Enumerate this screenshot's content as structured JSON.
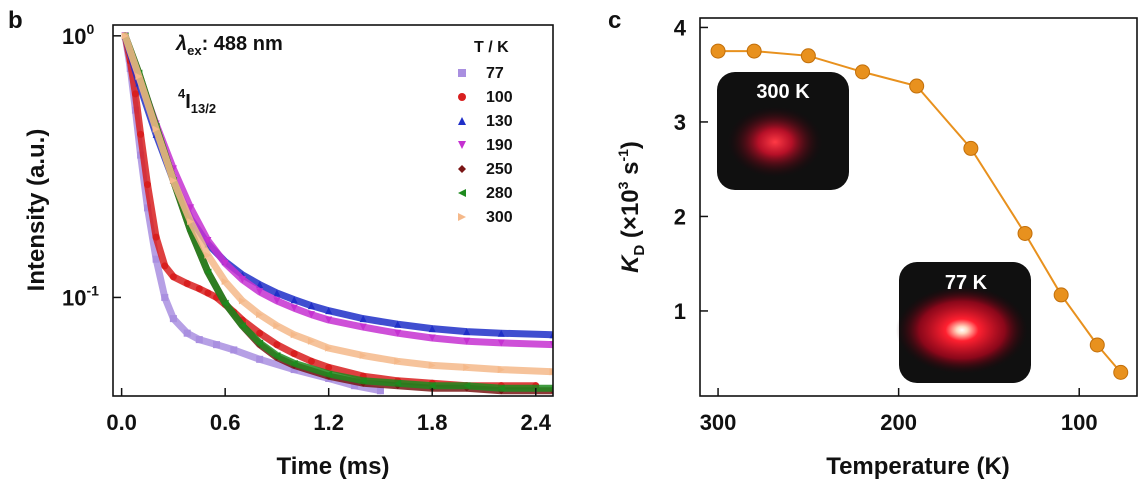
{
  "chart_data": [
    {
      "panel": "b",
      "type": "line",
      "xlabel": "Time (ms)",
      "ylabel": "Intensity (a.u.)",
      "xlim": [
        -0.05,
        2.5
      ],
      "ylim": [
        0.042,
        1.1
      ],
      "yscale": "log",
      "xticks": [
        {
          "value": 0.0,
          "label": "0.0"
        },
        {
          "value": 0.6,
          "label": "0.6"
        },
        {
          "value": 1.2,
          "label": "1.2"
        },
        {
          "value": 1.8,
          "label": "1.8"
        },
        {
          "value": 2.4,
          "label": "2.4"
        }
      ],
      "ytick_base": "10",
      "yticks": [
        {
          "value": 1,
          "exponent": "0"
        },
        {
          "value": 0.1,
          "exponent": "-1"
        }
      ],
      "annotation_lambda": {
        "symbol": "λ",
        "sub": "ex",
        "text": ": 488 nm"
      },
      "annotation_level": {
        "sup": "4",
        "main": "I",
        "sub": "13/2"
      },
      "legend_title": "T / K",
      "series": [
        {
          "name": "77",
          "color": "#a98fe0",
          "marker": "square",
          "x": [
            0.02,
            0.05,
            0.08,
            0.11,
            0.15,
            0.2,
            0.25,
            0.3,
            0.38,
            0.45,
            0.55,
            0.65,
            0.8,
            1.0,
            1.2,
            1.35,
            1.5
          ],
          "y": [
            1.0,
            0.75,
            0.52,
            0.35,
            0.22,
            0.14,
            0.1,
            0.083,
            0.073,
            0.069,
            0.066,
            0.063,
            0.058,
            0.053,
            0.049,
            0.046,
            0.044
          ]
        },
        {
          "name": "100",
          "color": "#d81f1f",
          "marker": "circle",
          "x": [
            0.02,
            0.05,
            0.08,
            0.11,
            0.15,
            0.2,
            0.25,
            0.3,
            0.38,
            0.45,
            0.5,
            0.55,
            0.6,
            0.65,
            0.7,
            0.8,
            0.9,
            1.0,
            1.1,
            1.2,
            1.4,
            1.6,
            1.8,
            2.0,
            2.2,
            2.4
          ],
          "y": [
            1.0,
            0.8,
            0.6,
            0.42,
            0.27,
            0.17,
            0.132,
            0.12,
            0.113,
            0.108,
            0.104,
            0.1,
            0.094,
            0.088,
            0.082,
            0.073,
            0.066,
            0.061,
            0.057,
            0.054,
            0.05,
            0.048,
            0.047,
            0.046,
            0.046,
            0.046
          ]
        },
        {
          "name": "130",
          "color": "#1f2fc8",
          "marker": "triangle",
          "x": [
            0.02,
            0.1,
            0.2,
            0.3,
            0.4,
            0.5,
            0.6,
            0.7,
            0.8,
            0.9,
            1.0,
            1.1,
            1.2,
            1.4,
            1.6,
            1.8,
            2.0,
            2.2,
            2.5
          ],
          "y": [
            1.0,
            0.66,
            0.42,
            0.28,
            0.2,
            0.16,
            0.137,
            0.122,
            0.112,
            0.104,
            0.098,
            0.093,
            0.089,
            0.083,
            0.079,
            0.076,
            0.074,
            0.073,
            0.072
          ]
        },
        {
          "name": "190",
          "color": "#c531d1",
          "marker": "triangle-down",
          "x": [
            0.02,
            0.1,
            0.2,
            0.3,
            0.4,
            0.5,
            0.6,
            0.7,
            0.8,
            0.9,
            1.0,
            1.1,
            1.2,
            1.4,
            1.6,
            1.8,
            2.0,
            2.2,
            2.5
          ],
          "y": [
            1.0,
            0.7,
            0.46,
            0.31,
            0.22,
            0.165,
            0.135,
            0.117,
            0.105,
            0.097,
            0.091,
            0.086,
            0.082,
            0.077,
            0.073,
            0.07,
            0.068,
            0.067,
            0.066
          ]
        },
        {
          "name": "250",
          "color": "#7a1515",
          "marker": "diamond",
          "x": [
            0.02,
            0.1,
            0.2,
            0.3,
            0.4,
            0.5,
            0.6,
            0.7,
            0.8,
            0.9,
            1.0,
            1.2,
            1.4,
            1.6,
            1.8,
            2.0,
            2.2,
            2.5
          ],
          "y": [
            1.0,
            0.72,
            0.45,
            0.28,
            0.18,
            0.125,
            0.095,
            0.078,
            0.066,
            0.059,
            0.055,
            0.05,
            0.047,
            0.046,
            0.045,
            0.045,
            0.044,
            0.044
          ]
        },
        {
          "name": "280",
          "color": "#1e8a1e",
          "marker": "triangle-left",
          "x": [
            0.02,
            0.1,
            0.2,
            0.3,
            0.4,
            0.5,
            0.6,
            0.7,
            0.8,
            0.9,
            1.0,
            1.2,
            1.4,
            1.6,
            1.8,
            2.0,
            2.2,
            2.5
          ],
          "y": [
            1.0,
            0.72,
            0.45,
            0.28,
            0.18,
            0.125,
            0.095,
            0.078,
            0.067,
            0.06,
            0.056,
            0.051,
            0.048,
            0.047,
            0.046,
            0.046,
            0.045,
            0.045
          ]
        },
        {
          "name": "300",
          "color": "#f5b98a",
          "marker": "triangle-right",
          "x": [
            0.02,
            0.1,
            0.2,
            0.3,
            0.4,
            0.5,
            0.6,
            0.7,
            0.8,
            0.9,
            1.0,
            1.1,
            1.2,
            1.4,
            1.6,
            1.8,
            2.0,
            2.2,
            2.5
          ],
          "y": [
            1.0,
            0.7,
            0.44,
            0.28,
            0.195,
            0.145,
            0.115,
            0.097,
            0.086,
            0.078,
            0.072,
            0.068,
            0.064,
            0.06,
            0.057,
            0.055,
            0.054,
            0.053,
            0.052
          ]
        }
      ]
    },
    {
      "panel": "c",
      "type": "line",
      "xlabel": "Temperature (K)",
      "ylabel_main": "K",
      "ylabel_sub": "D",
      "ylabel_unit_parts": [
        "(×10",
        "3",
        " s",
        "-1",
        ")"
      ],
      "x_reversed": true,
      "xlim": [
        310,
        68
      ],
      "ylim": [
        0.1,
        4.1
      ],
      "xticks": [
        300,
        200,
        100
      ],
      "yticks": [
        1,
        2,
        3,
        4
      ],
      "series": [
        {
          "color": "#e8911e",
          "marker": "circle",
          "x": [
            300,
            280,
            250,
            220,
            190,
            160,
            130,
            110,
            90,
            77
          ],
          "y": [
            3.75,
            3.75,
            3.7,
            3.53,
            3.38,
            2.72,
            1.82,
            1.17,
            0.64,
            0.35
          ]
        }
      ],
      "insets": [
        {
          "label": "300 K"
        },
        {
          "label": "77 K"
        }
      ]
    }
  ]
}
